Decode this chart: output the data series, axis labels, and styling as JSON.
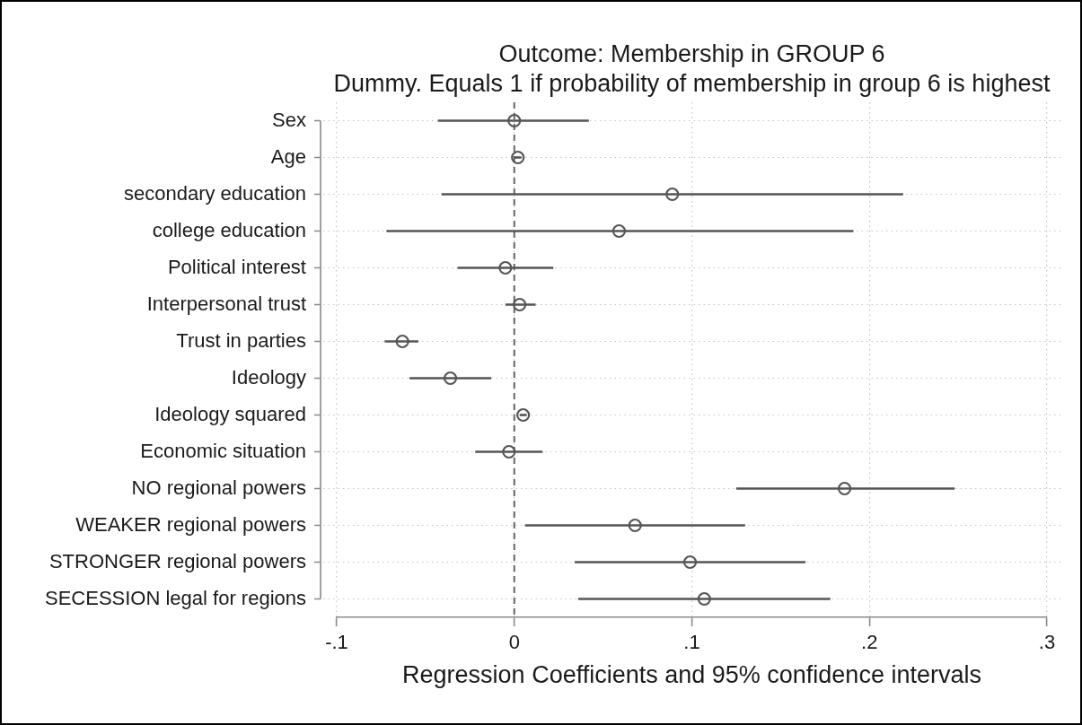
{
  "chart_data": {
    "type": "scatter",
    "orientation": "horizontal",
    "title": "Outcome: Membership in GROUP 6",
    "subtitle": "Dummy. Equals 1 if probability of membership in group 6 is highest",
    "xlabel": "Regression Coefficients and 95% confidence intervals",
    "categories": [
      "Sex",
      "Age",
      "secondary education",
      "college education",
      "Political interest",
      "Interpersonal trust",
      "Trust in parties",
      "Ideology",
      "Ideology squared",
      "Economic situation",
      "NO regional powers",
      "WEAKER regional powers",
      "STRONGER regional powers",
      "SECESSION legal for regions"
    ],
    "values": [
      0.0,
      0.002,
      0.089,
      0.059,
      -0.005,
      0.003,
      -0.063,
      -0.036,
      0.005,
      -0.003,
      0.186,
      0.068,
      0.099,
      0.107
    ],
    "errors": [
      [
        -0.043,
        0.042
      ],
      [
        0.0,
        0.004
      ],
      [
        -0.041,
        0.219
      ],
      [
        -0.072,
        0.191
      ],
      [
        -0.032,
        0.022
      ],
      [
        -0.005,
        0.012
      ],
      [
        -0.073,
        -0.054
      ],
      [
        -0.059,
        -0.013
      ],
      [
        0.003,
        0.007
      ],
      [
        -0.022,
        0.016
      ],
      [
        0.125,
        0.248
      ],
      [
        0.006,
        0.13
      ],
      [
        0.034,
        0.164
      ],
      [
        0.036,
        0.178
      ]
    ],
    "color": "#555555",
    "marker": "circle",
    "xlim": [
      -0.1,
      0.3
    ],
    "xticks": [
      {
        "value": -0.1,
        "label": "-.1"
      },
      0,
      {
        "value": 0.1,
        "label": ".1"
      },
      {
        "value": 0.2,
        "label": ".2"
      },
      {
        "value": 0.3,
        "label": ".3"
      }
    ],
    "grid": true,
    "ref_lines": [
      {
        "axis": "x",
        "value": 0,
        "color": "#666666",
        "line_style": "dashed"
      }
    ]
  }
}
